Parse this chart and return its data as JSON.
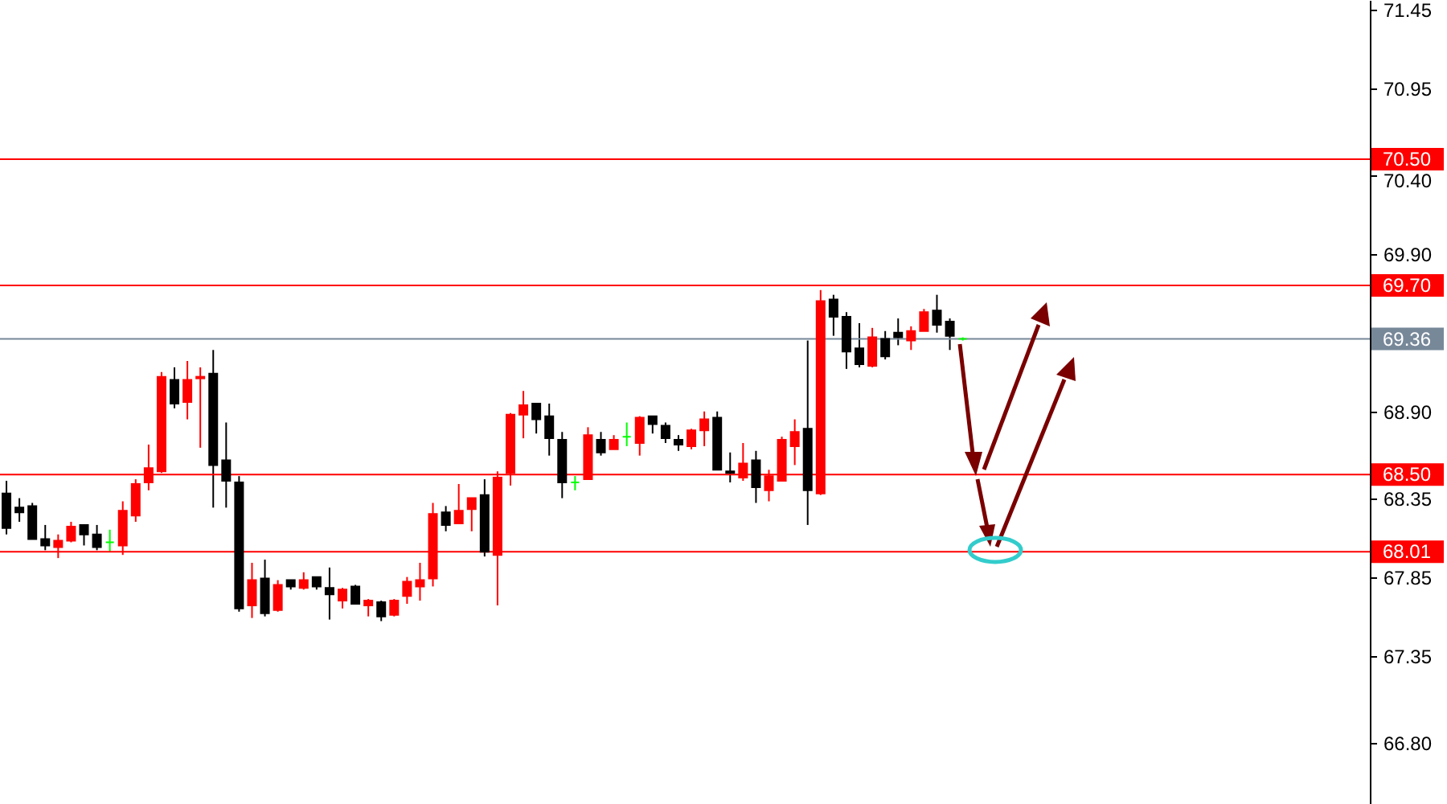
{
  "chart_data": {
    "type": "candlestick",
    "categories": [
      null,
      null,
      null,
      null,
      null,
      null,
      null,
      null,
      null,
      null,
      null,
      null,
      null,
      null,
      null,
      null,
      null,
      null,
      null,
      null,
      null,
      null,
      null,
      null,
      null,
      null,
      null,
      null,
      null,
      null,
      null,
      null,
      null,
      null,
      null,
      null,
      null,
      null,
      null,
      null,
      null,
      null,
      null,
      null,
      null,
      null,
      null,
      null,
      null,
      null,
      null,
      null,
      null,
      null,
      null,
      null,
      null,
      null,
      null,
      null,
      null,
      null,
      null,
      null,
      null,
      null,
      null,
      null,
      null,
      null,
      null,
      null,
      null,
      null,
      null,
      null,
      null,
      null,
      null,
      null,
      null,
      null,
      null,
      null,
      null,
      null,
      null,
      null,
      null,
      null,
      null,
      null,
      null,
      null,
      null,
      null,
      null,
      null,
      null,
      null,
      null,
      null,
      null,
      null,
      null,
      null
    ],
    "ohlc": [
      [
        68.38,
        68.46,
        68.12,
        68.16
      ],
      [
        68.29,
        68.35,
        68.2,
        68.26
      ],
      [
        68.3,
        68.32,
        68.09,
        68.09
      ],
      [
        68.09,
        68.18,
        68.02,
        68.05
      ],
      [
        68.04,
        68.12,
        67.97,
        68.08
      ],
      [
        68.08,
        68.2,
        68.07,
        68.17
      ],
      [
        68.18,
        68.18,
        68.05,
        68.12
      ],
      [
        68.12,
        68.18,
        68.02,
        68.04
      ],
      [
        68.07,
        68.15,
        68.01,
        68.07
      ],
      [
        68.05,
        68.33,
        67.99,
        68.27
      ],
      [
        68.24,
        68.47,
        68.2,
        68.44
      ],
      [
        68.45,
        68.69,
        68.4,
        68.54
      ],
      [
        68.52,
        69.15,
        68.51,
        69.12
      ],
      [
        69.1,
        69.18,
        68.92,
        68.95
      ],
      [
        68.96,
        69.22,
        68.85,
        69.1
      ],
      [
        69.11,
        69.18,
        68.67,
        69.12
      ],
      [
        69.14,
        69.29,
        68.29,
        68.56
      ],
      [
        68.59,
        68.83,
        68.29,
        68.46
      ],
      [
        68.45,
        68.49,
        67.63,
        67.65
      ],
      [
        67.67,
        67.94,
        67.59,
        67.83
      ],
      [
        67.84,
        67.96,
        67.6,
        67.62
      ],
      [
        67.64,
        67.83,
        67.63,
        67.8
      ],
      [
        67.83,
        67.83,
        67.77,
        67.79
      ],
      [
        67.78,
        67.88,
        67.77,
        67.83
      ],
      [
        67.85,
        67.85,
        67.77,
        67.79
      ],
      [
        67.78,
        67.91,
        67.58,
        67.74
      ],
      [
        67.7,
        67.78,
        67.65,
        67.77
      ],
      [
        67.79,
        67.8,
        67.68,
        67.68
      ],
      [
        67.67,
        67.71,
        67.6,
        67.7
      ],
      [
        67.69,
        67.7,
        67.57,
        67.6
      ],
      [
        67.61,
        67.71,
        67.6,
        67.7
      ],
      [
        67.73,
        67.85,
        67.68,
        67.82
      ],
      [
        67.79,
        67.94,
        67.7,
        67.83
      ],
      [
        67.84,
        68.32,
        67.79,
        68.25
      ],
      [
        68.26,
        68.3,
        68.14,
        68.18
      ],
      [
        68.19,
        68.44,
        68.19,
        68.27
      ],
      [
        68.28,
        68.35,
        68.14,
        68.35
      ],
      [
        68.37,
        68.47,
        67.98,
        68.01
      ],
      [
        67.99,
        68.52,
        67.67,
        68.48
      ],
      [
        68.51,
        68.89,
        68.43,
        68.88
      ],
      [
        68.88,
        69.03,
        68.73,
        68.94
      ],
      [
        68.95,
        68.95,
        68.76,
        68.85
      ],
      [
        68.87,
        68.95,
        68.62,
        68.73
      ],
      [
        68.72,
        68.77,
        68.35,
        68.45
      ],
      [
        68.45,
        68.49,
        68.4,
        68.45
      ],
      [
        68.47,
        68.8,
        68.47,
        68.75
      ],
      [
        68.72,
        68.77,
        68.62,
        68.64
      ],
      [
        68.66,
        68.75,
        68.66,
        68.72
      ],
      [
        68.74,
        68.83,
        68.68,
        68.74
      ],
      [
        68.7,
        68.87,
        68.62,
        68.86
      ],
      [
        68.87,
        68.87,
        68.76,
        68.82
      ],
      [
        68.81,
        68.83,
        68.7,
        68.73
      ],
      [
        68.72,
        68.75,
        68.65,
        68.69
      ],
      [
        68.68,
        68.79,
        68.66,
        68.78
      ],
      [
        68.78,
        68.9,
        68.68,
        68.85
      ],
      [
        68.86,
        68.9,
        68.53,
        68.53
      ],
      [
        68.52,
        68.64,
        68.45,
        68.51
      ],
      [
        68.48,
        68.7,
        68.46,
        68.57
      ],
      [
        68.59,
        68.65,
        68.32,
        68.42
      ],
      [
        68.4,
        68.53,
        68.33,
        68.49
      ],
      [
        68.46,
        68.74,
        68.46,
        68.72
      ],
      [
        68.68,
        68.85,
        68.56,
        68.77
      ],
      [
        68.79,
        69.35,
        68.18,
        68.4
      ],
      [
        68.38,
        69.67,
        68.37,
        69.6
      ],
      [
        69.61,
        69.64,
        69.38,
        69.5
      ],
      [
        69.5,
        69.53,
        69.17,
        69.28
      ],
      [
        69.3,
        69.46,
        69.18,
        69.2
      ],
      [
        69.19,
        69.43,
        69.18,
        69.37
      ],
      [
        69.36,
        69.41,
        69.23,
        69.25
      ],
      [
        69.4,
        69.49,
        69.32,
        69.37
      ],
      [
        69.35,
        69.44,
        69.29,
        69.41
      ],
      [
        69.41,
        69.55,
        69.41,
        69.53
      ],
      [
        69.54,
        69.64,
        69.4,
        69.45
      ],
      [
        69.47,
        69.49,
        69.29,
        69.38
      ],
      [
        69.36,
        69.37,
        69.35,
        69.36
      ],
      null,
      null,
      null,
      null,
      null,
      null,
      null,
      null,
      null,
      null,
      null,
      null,
      null,
      null,
      null,
      null,
      null,
      null,
      null,
      null,
      null,
      null,
      null,
      null,
      null,
      null,
      null,
      null,
      null,
      null,
      null
    ],
    "colors": [
      "#000000",
      "#000000",
      "#000000",
      "#000000",
      "#ff0000",
      "#ff0000",
      "#000000",
      "#000000",
      "#00ff00",
      "#ff0000",
      "#ff0000",
      "#ff0000",
      "#ff0000",
      "#000000",
      "#ff0000",
      "#ff0000",
      "#000000",
      "#000000",
      "#000000",
      "#ff0000",
      "#000000",
      "#ff0000",
      "#000000",
      "#ff0000",
      "#000000",
      "#000000",
      "#ff0000",
      "#000000",
      "#ff0000",
      "#000000",
      "#ff0000",
      "#ff0000",
      "#ff0000",
      "#ff0000",
      "#000000",
      "#ff0000",
      "#ff0000",
      "#000000",
      "#ff0000",
      "#ff0000",
      "#ff0000",
      "#000000",
      "#000000",
      "#000000",
      "#00ff00",
      "#ff0000",
      "#000000",
      "#ff0000",
      "#00ff00",
      "#ff0000",
      "#000000",
      "#000000",
      "#000000",
      "#ff0000",
      "#ff0000",
      "#000000",
      "#000000",
      "#ff0000",
      "#000000",
      "#ff0000",
      "#ff0000",
      "#ff0000",
      "#000000",
      "#ff0000",
      "#000000",
      "#000000",
      "#000000",
      "#ff0000",
      "#000000",
      "#000000",
      "#ff0000",
      "#ff0000",
      "#000000",
      "#000000",
      "#00ff00",
      null,
      null,
      null,
      null,
      null,
      null,
      null,
      null,
      null,
      null,
      null,
      null,
      null,
      null,
      null,
      null,
      null,
      null,
      null,
      null,
      null,
      null,
      null,
      null,
      null,
      null,
      null,
      null,
      null,
      null,
      null
    ],
    "ylim": [
      66.41,
      71.51
    ],
    "yticks": [
      {
        "value": 71.45,
        "label": "71.45"
      },
      {
        "value": 70.95,
        "label": "70.95"
      },
      {
        "value": 70.4,
        "label": "70.40"
      },
      {
        "value": 69.9,
        "label": "69.90"
      },
      {
        "value": 68.9,
        "label": "68.90"
      },
      {
        "value": 68.35,
        "label": "68.35"
      },
      {
        "value": 67.85,
        "label": "67.85"
      },
      {
        "value": 67.35,
        "label": "67.35"
      },
      {
        "value": 66.8,
        "label": "66.80"
      }
    ],
    "ref_lines": [
      {
        "axis": "y",
        "value": 70.5,
        "label": "70.50",
        "color": "#ff0000"
      },
      {
        "axis": "y",
        "value": 69.7,
        "label": "69.70",
        "color": "#ff0000"
      },
      {
        "axis": "y",
        "value": 69.36,
        "label": "69.36",
        "color": "#778899"
      },
      {
        "axis": "y",
        "value": 68.5,
        "label": "68.50",
        "color": "#ff0000"
      },
      {
        "axis": "y",
        "value": 68.01,
        "label": "68.01",
        "color": "#ff0000"
      }
    ],
    "tick_labels": "y"
  }
}
